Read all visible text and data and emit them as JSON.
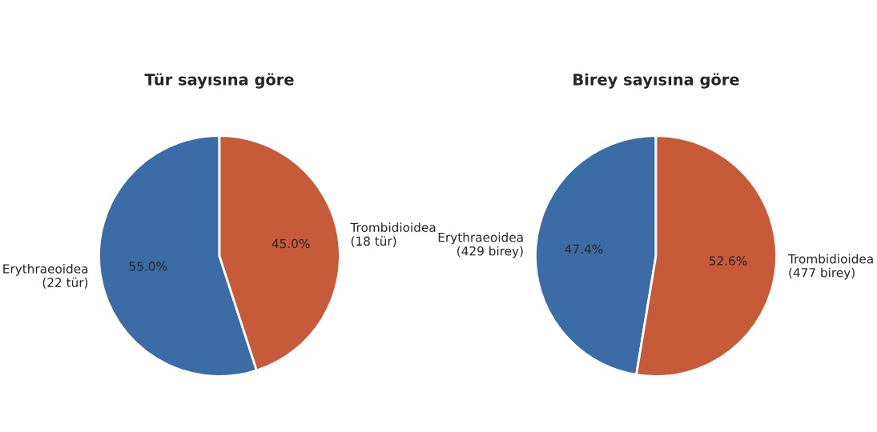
{
  "chart_data": [
    {
      "type": "pie",
      "title": "Tür sayısına göre",
      "categories": [
        "Erythraeoidea\n(22 tür)",
        "Trombidioidea\n(18 tür)"
      ],
      "values": [
        55.0,
        45.0
      ],
      "value_labels": [
        "55.0%",
        "45.0%"
      ],
      "colors": [
        "#3b6ca6",
        "#c65a39"
      ]
    },
    {
      "type": "pie",
      "title": "Birey sayısına göre",
      "categories": [
        "Erythraeoidea\n(429 birey)",
        "Trombidioidea\n(477 birey)"
      ],
      "values": [
        47.4,
        52.6
      ],
      "value_labels": [
        "47.4%",
        "52.6%"
      ],
      "colors": [
        "#3b6ca6",
        "#c65a39"
      ]
    }
  ]
}
